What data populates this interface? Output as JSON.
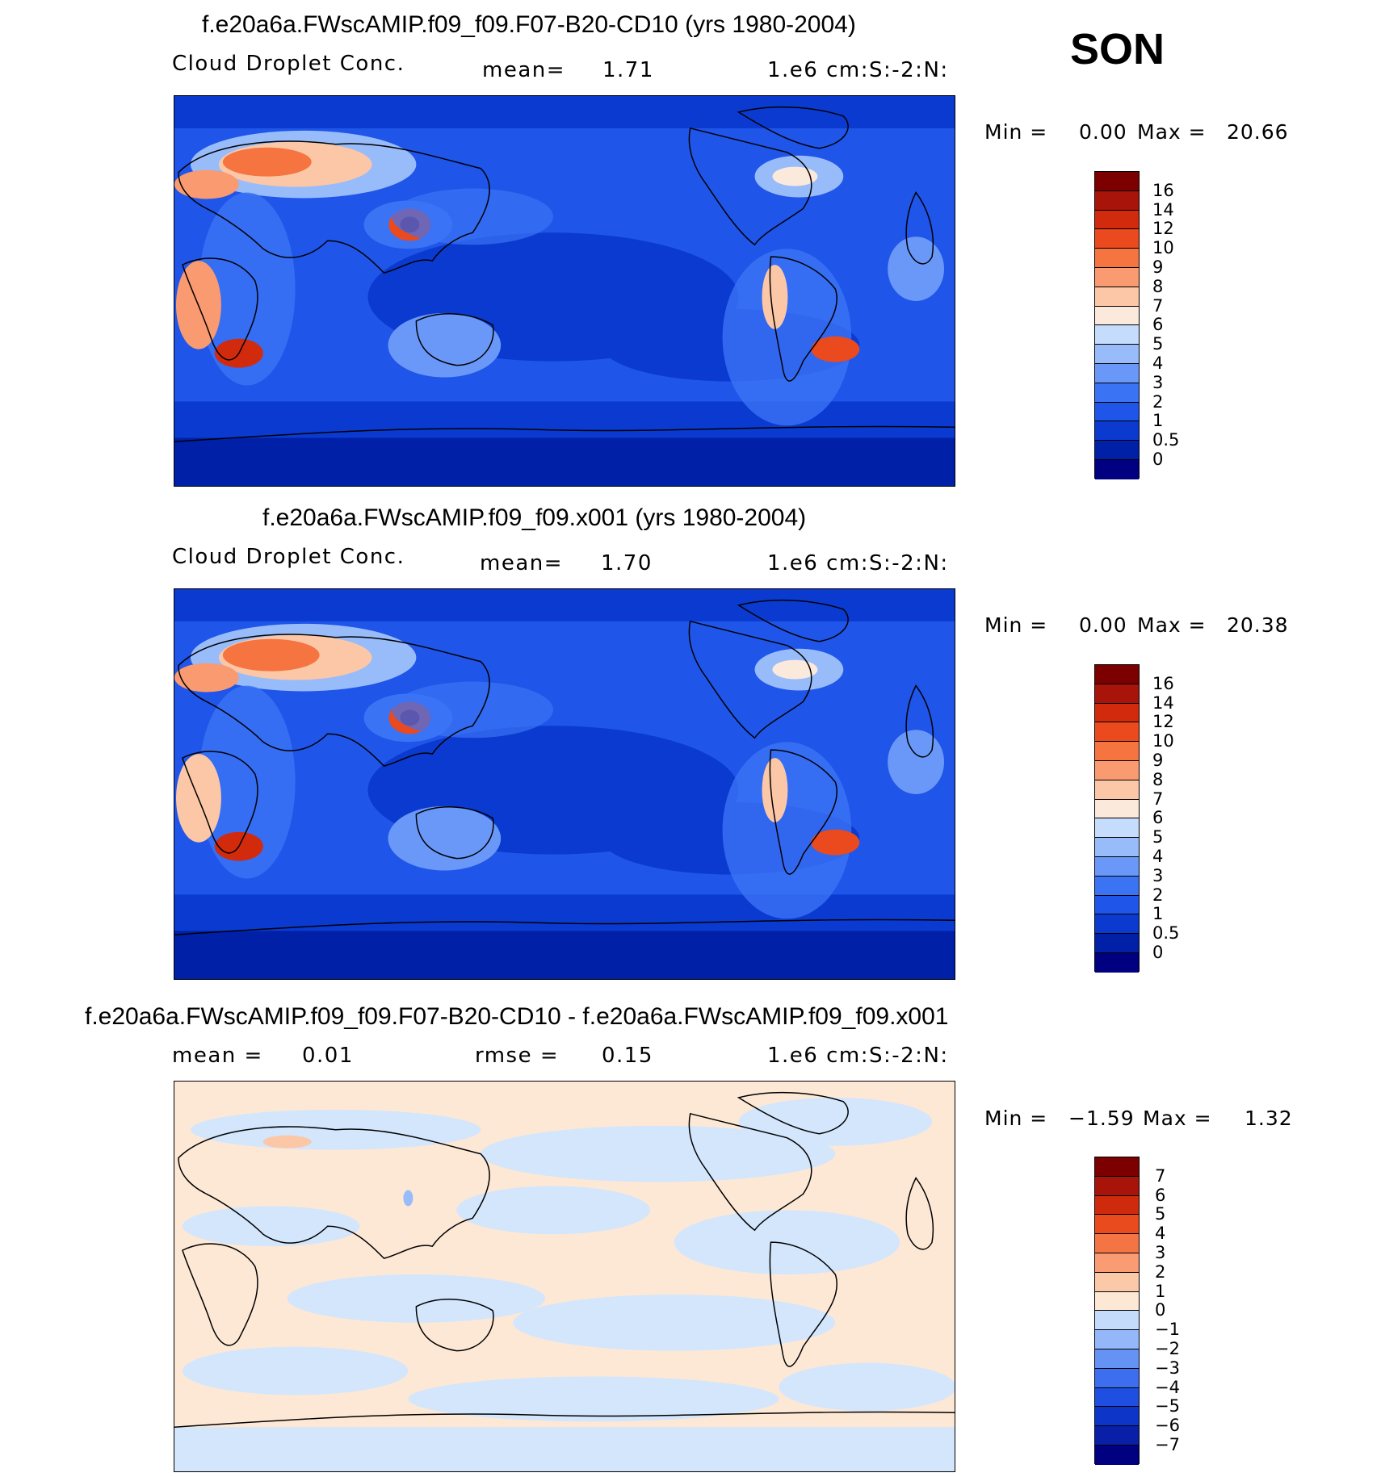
{
  "season": "SON",
  "panels": [
    {
      "title": "f.e20a6a.FWscAMIP.f09_f09.F07-B20-CD10 (yrs 1980-2004)",
      "variable": "Cloud Droplet Conc.",
      "stat_label": "mean=",
      "stat_value": "1.71",
      "units": "1.e6 cm:S:-2:N:",
      "min_label": "Min =",
      "min_value": "0.00",
      "max_label": "Max =",
      "max_value": "20.66",
      "colorbar": {
        "colors": [
          "#000080",
          "#0020a8",
          "#0a3ad0",
          "#1f55e8",
          "#3b73f5",
          "#6a98f8",
          "#98bcfa",
          "#c5dcfc",
          "#fbe9dc",
          "#fbc7a7",
          "#f99a70",
          "#f57440",
          "#ea4a1e",
          "#d22a0c",
          "#a8140a",
          "#7c0000"
        ],
        "labels": [
          "0",
          "0.5",
          "1",
          "2",
          "3",
          "4",
          "5",
          "6",
          "7",
          "8",
          "9",
          "10",
          "12",
          "14",
          "16"
        ]
      }
    },
    {
      "title": "f.e20a6a.FWscAMIP.f09_f09.x001 (yrs 1980-2004)",
      "variable": "Cloud Droplet Conc.",
      "stat_label": "mean=",
      "stat_value": "1.70",
      "units": "1.e6 cm:S:-2:N:",
      "min_label": "Min =",
      "min_value": "0.00",
      "max_label": "Max =",
      "max_value": "20.38",
      "colorbar": {
        "colors": [
          "#000080",
          "#0020a8",
          "#0a3ad0",
          "#1f55e8",
          "#3b73f5",
          "#6a98f8",
          "#98bcfa",
          "#c5dcfc",
          "#fbe9dc",
          "#fbc7a7",
          "#f99a70",
          "#f57440",
          "#ea4a1e",
          "#d22a0c",
          "#a8140a",
          "#7c0000"
        ],
        "labels": [
          "0",
          "0.5",
          "1",
          "2",
          "3",
          "4",
          "5",
          "6",
          "7",
          "8",
          "9",
          "10",
          "12",
          "14",
          "16"
        ]
      }
    },
    {
      "title": "f.e20a6a.FWscAMIP.f09_f09.F07-B20-CD10 - f.e20a6a.FWscAMIP.f09_f09.x001",
      "variable": "",
      "stat_label": "mean =",
      "stat_value": "0.01",
      "rmse_label": "rmse =",
      "rmse_value": "0.15",
      "units": "1.e6 cm:S:-2:N:",
      "min_label": "Min =",
      "min_value": "−1.59",
      "max_label": "Max =",
      "max_value": "1.32",
      "colorbar": {
        "colors": [
          "#000080",
          "#0a1fa8",
          "#0d36c8",
          "#1f4fe0",
          "#3d6ef0",
          "#6492f5",
          "#93b7f8",
          "#c4dbfb",
          "#fde8d6",
          "#fcc9a8",
          "#f99c74",
          "#f47444",
          "#e94a1e",
          "#cf2a0c",
          "#a8140a",
          "#7c0000"
        ],
        "labels": [
          "−7",
          "−6",
          "−5",
          "−4",
          "−3",
          "−2",
          "−1",
          "0",
          "1",
          "2",
          "3",
          "4",
          "5",
          "6",
          "7"
        ]
      }
    }
  ]
}
